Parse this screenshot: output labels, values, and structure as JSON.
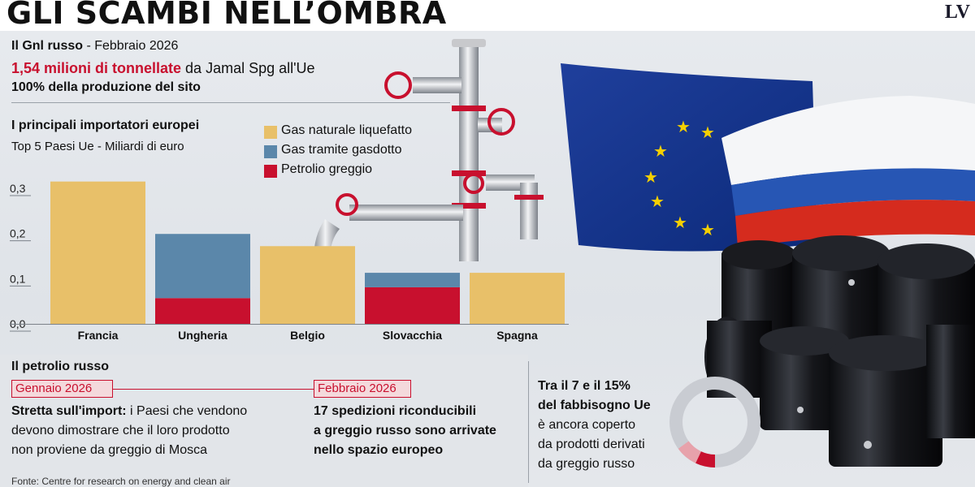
{
  "header": {
    "title": "GLI SCAMBI NELL’OMBRA",
    "logo": "LV"
  },
  "lng": {
    "line1_bold": "Il Gnl russo",
    "line1_rest": " - Febbraio 2026",
    "line2_highlight": "1,54 milioni di tonnellate",
    "line2_rest": " da Jamal Spg all'Ue",
    "line3": "100% della produzione del sito"
  },
  "importers": {
    "title": "I principali importatori europei",
    "subtitle": "Top 5 Paesi Ue - Miliardi di euro"
  },
  "colors": {
    "lng": "#e8c069",
    "pipeline": "#5b87aa",
    "oil": "#c8102e",
    "accent_red": "#c8102e"
  },
  "chart_data": {
    "type": "bar",
    "stacked": true,
    "categories": [
      "Francia",
      "Ungheria",
      "Belgio",
      "Slovacchia",
      "Spagna"
    ],
    "series": [
      {
        "name": "Gas naturale liquefatto",
        "values": [
          0.315,
          0,
          0.172,
          0,
          0.113
        ]
      },
      {
        "name": "Gas tramite gasdotto",
        "values": [
          0,
          0.142,
          0,
          0.032,
          0
        ]
      },
      {
        "name": "Petrolio greggio",
        "values": [
          0,
          0.057,
          0,
          0.081,
          0
        ]
      }
    ],
    "yticks": [
      "0,3",
      "0,2",
      "0,1",
      "0,0"
    ],
    "ylim": [
      0,
      0.3
    ],
    "legend_position": "top-right",
    "grid": false
  },
  "petrolio": {
    "title": "Il petrolio russo",
    "left_date": "Gennaio 2026",
    "left_bold": "Stretta sull'import:",
    "left_line1_rest": " i Paesi che vendono",
    "left_line2": "devono dimostrare che il loro prodotto",
    "left_line3": "non proviene da greggio di Mosca",
    "right_date": "Febbraio 2026",
    "right_line1": "17 spedizioni riconducibili",
    "right_line2": "a greggio russo sono arrivate",
    "right_line3": "nello spazio europeo"
  },
  "share": {
    "line1": "Tra il 7 e il 15%",
    "line2": "del fabbisogno Ue",
    "line3": "è ancora coperto",
    "line4": "da prodotti derivati",
    "line5": "da greggio russo",
    "range_low_pct": 7,
    "range_high_pct": 15
  },
  "footer": {
    "source": "Fonte: Centre for research on energy and clean air"
  }
}
